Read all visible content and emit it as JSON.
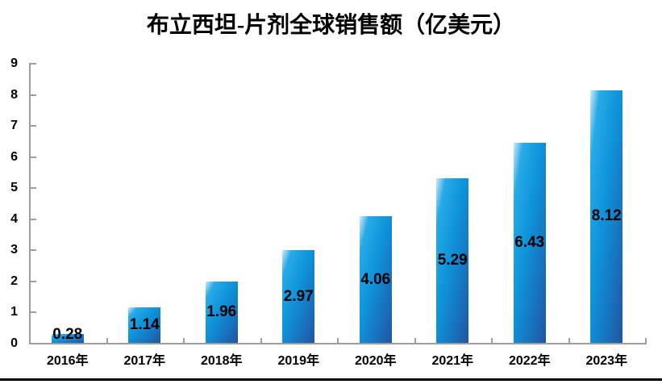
{
  "chart_data": {
    "type": "bar",
    "title": "布立西坦-片剂全球销售额（亿美元）",
    "categories": [
      "2016年",
      "2017年",
      "2018年",
      "2019年",
      "2020年",
      "2021年",
      "2022年",
      "2023年"
    ],
    "values": [
      0.28,
      1.14,
      1.96,
      2.97,
      4.06,
      5.29,
      6.43,
      8.12
    ],
    "data_labels": [
      "0.28",
      "1.14",
      "1.96",
      "2.97",
      "4.06",
      "5.29",
      "6.43",
      "8.12"
    ],
    "xlabel": "",
    "ylabel": "",
    "ylim": [
      0,
      9
    ],
    "yticks": [
      0,
      1,
      2,
      3,
      4,
      5,
      6,
      7,
      8,
      9
    ],
    "grid": false,
    "legend": "none",
    "data_label_position": "inside-center",
    "colors": {
      "bar_gradient": [
        "#d2ebf8",
        "#27aae7",
        "#0e93da",
        "#1a6cb8",
        "#20549f"
      ],
      "axis": "#9e9e9e",
      "text": "#000000",
      "bottom_rule": "#000000"
    }
  }
}
